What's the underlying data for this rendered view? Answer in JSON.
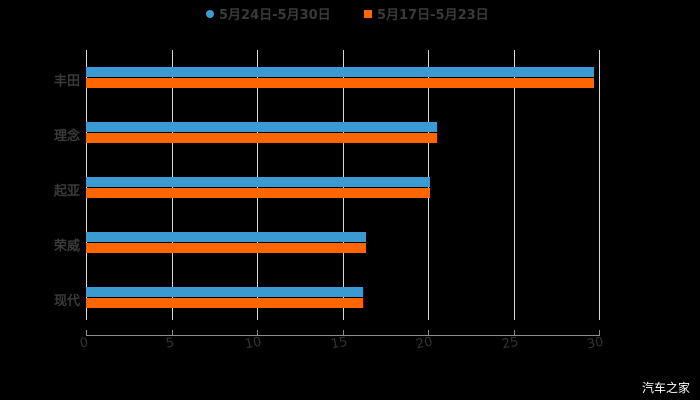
{
  "chart_data": {
    "type": "bar",
    "orientation": "horizontal",
    "title": "",
    "categories": [
      "丰田",
      "理念",
      "起亚",
      "荣威",
      "现代"
    ],
    "series": [
      {
        "name": "5月24日-5月30日",
        "color": "#3b9ad2",
        "values": [
          29.7,
          20.5,
          20.1,
          16.4,
          16.2
        ]
      },
      {
        "name": "5月17日-5月23日",
        "color": "#ff6600",
        "values": [
          29.7,
          20.5,
          20.1,
          16.4,
          16.2
        ]
      }
    ],
    "xlabel": "",
    "ylabel": "",
    "xlim": [
      0,
      30
    ],
    "xticks": [
      "0",
      "5",
      "10",
      "15",
      "20",
      "25",
      "30"
    ],
    "grid": true,
    "legend_position": "top"
  },
  "legend": {
    "s1": "5月24日-5月30日",
    "s2": "5月17日-5月23日"
  },
  "categories": [
    "丰田",
    "理念",
    "起亚",
    "荣威",
    "现代"
  ],
  "ticks": [
    "0",
    "5",
    "10",
    "15",
    "20",
    "25",
    "30"
  ],
  "watermark": "汽车之家",
  "colors": {
    "series1": "#3b9ad2",
    "series2": "#ff6600",
    "background": "#000000"
  }
}
